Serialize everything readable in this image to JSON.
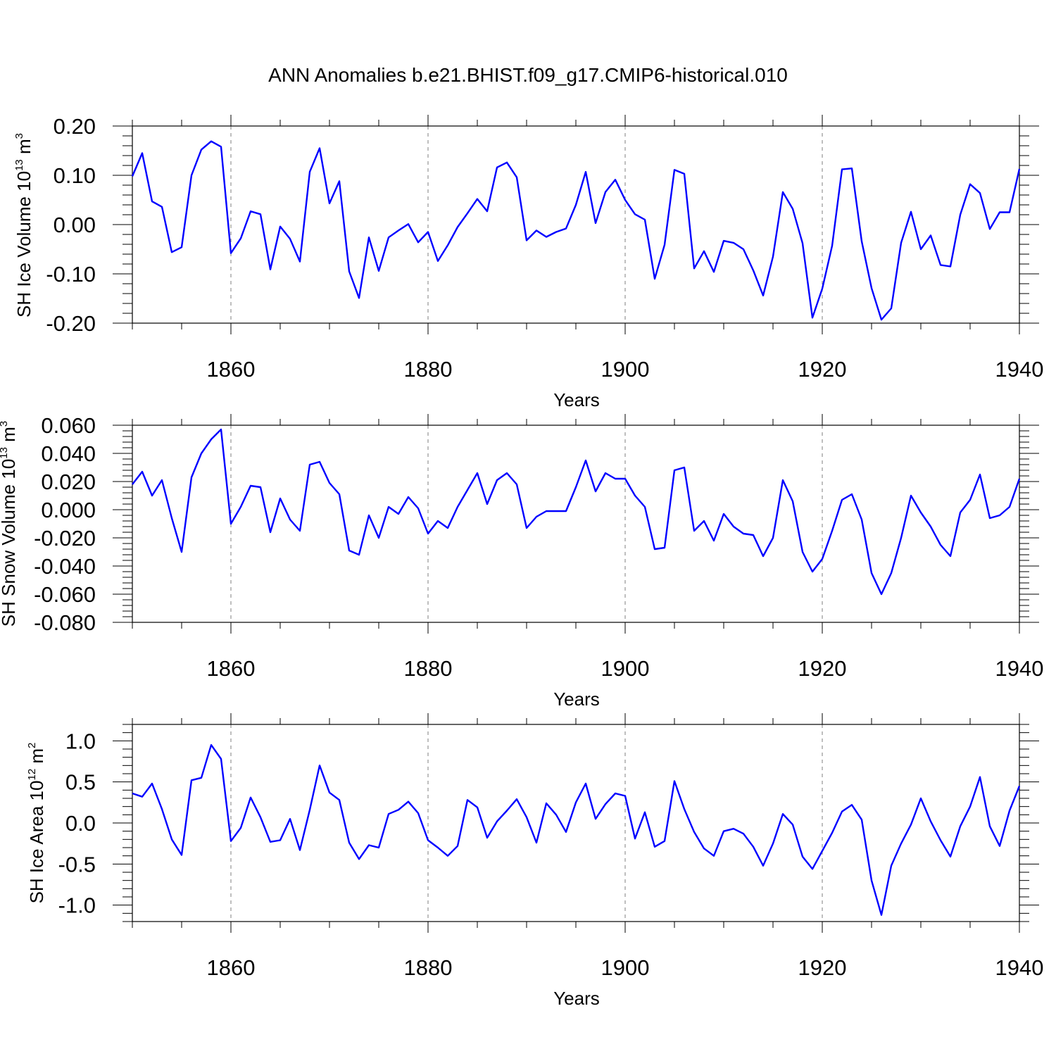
{
  "chart_data": [
    {
      "type": "line",
      "title": "ANN Anomalies b.e21.BHIST.f09_g17.CMIP6-historical.010",
      "ylabel": "SH Ice Volume 10",
      "ylabel_exp": "13",
      "ylabel_unit": " m",
      "ylabel_unit_exp": "3",
      "xlabel": "Years",
      "xlim": [
        1850,
        1940
      ],
      "ylim": [
        -0.2,
        0.2
      ],
      "xticks": [
        1860,
        1880,
        1900,
        1920,
        1940
      ],
      "xtick_labels": [
        "1860",
        "1880",
        "1900",
        "1920",
        "1940"
      ],
      "yticks": [
        0.2,
        0.1,
        0.0,
        -0.1,
        -0.2
      ],
      "ytick_labels": [
        "0.20",
        "0.10",
        "0.00",
        "-0.10",
        "-0.20"
      ],
      "grid_x": true,
      "color": "#0000ff",
      "x_start": 1850,
      "values": [
        0.098,
        0.145,
        0.047,
        0.036,
        -0.056,
        -0.046,
        0.1,
        0.152,
        0.169,
        0.158,
        -0.058,
        -0.028,
        0.027,
        0.021,
        -0.091,
        -0.004,
        -0.029,
        -0.075,
        0.107,
        0.155,
        0.043,
        0.088,
        -0.095,
        -0.149,
        -0.026,
        -0.094,
        -0.026,
        -0.012,
        0.001,
        -0.036,
        -0.015,
        -0.074,
        -0.042,
        -0.005,
        0.023,
        0.052,
        0.027,
        0.116,
        0.126,
        0.096,
        -0.032,
        -0.012,
        -0.025,
        -0.015,
        -0.008,
        0.04,
        0.107,
        0.003,
        0.066,
        0.091,
        0.05,
        0.021,
        0.01,
        -0.11,
        -0.041,
        0.111,
        0.103,
        -0.089,
        -0.054,
        -0.096,
        -0.033,
        -0.037,
        -0.05,
        -0.093,
        -0.144,
        -0.065,
        0.066,
        0.032,
        -0.038,
        -0.189,
        -0.13,
        -0.043,
        0.112,
        0.114,
        -0.034,
        -0.129,
        -0.193,
        -0.17,
        -0.037,
        0.026,
        -0.05,
        -0.022,
        -0.082,
        -0.085,
        0.02,
        0.082,
        0.064,
        -0.009,
        0.025,
        0.025,
        0.113
      ]
    },
    {
      "type": "line",
      "ylabel": "SH Snow Volume 10",
      "ylabel_exp": "13",
      "ylabel_unit": " m",
      "ylabel_unit_exp": "3",
      "xlabel": "Years",
      "xlim": [
        1850,
        1940
      ],
      "ylim": [
        -0.08,
        0.06
      ],
      "xticks": [
        1860,
        1880,
        1900,
        1920,
        1940
      ],
      "xtick_labels": [
        "1860",
        "1880",
        "1900",
        "1920",
        "1940"
      ],
      "yticks": [
        0.06,
        0.04,
        0.02,
        0.0,
        -0.02,
        -0.04,
        -0.06,
        -0.08
      ],
      "ytick_labels": [
        "0.060",
        "0.040",
        "0.020",
        "0.000",
        "-0.020",
        "-0.040",
        "-0.060",
        "-0.080"
      ],
      "grid_x": true,
      "color": "#0000ff",
      "x_start": 1850,
      "values": [
        0.018,
        0.027,
        0.01,
        0.021,
        -0.006,
        -0.03,
        0.023,
        0.04,
        0.05,
        0.057,
        -0.01,
        0.002,
        0.017,
        0.016,
        -0.016,
        0.008,
        -0.007,
        -0.015,
        0.032,
        0.034,
        0.019,
        0.011,
        -0.029,
        -0.032,
        -0.004,
        -0.02,
        0.002,
        -0.003,
        0.009,
        0.001,
        -0.017,
        -0.008,
        -0.013,
        0.002,
        0.014,
        0.026,
        0.004,
        0.021,
        0.026,
        0.018,
        -0.013,
        -0.005,
        -0.001,
        -0.001,
        -0.001,
        0.016,
        0.035,
        0.013,
        0.026,
        0.022,
        0.022,
        0.01,
        0.002,
        -0.028,
        -0.027,
        0.028,
        0.03,
        -0.015,
        -0.008,
        -0.022,
        -0.003,
        -0.012,
        -0.017,
        -0.018,
        -0.033,
        -0.02,
        0.021,
        0.006,
        -0.03,
        -0.044,
        -0.035,
        -0.015,
        0.007,
        0.011,
        -0.007,
        -0.045,
        -0.06,
        -0.045,
        -0.02,
        0.01,
        -0.002,
        -0.012,
        -0.025,
        -0.033,
        -0.002,
        0.007,
        0.025,
        -0.006,
        -0.004,
        0.002,
        0.022
      ]
    },
    {
      "type": "line",
      "ylabel": "SH Ice Area 10",
      "ylabel_exp": "12",
      "ylabel_unit": " m",
      "ylabel_unit_exp": "2",
      "xlabel": "Years",
      "xlim": [
        1850,
        1940
      ],
      "ylim": [
        -1.2,
        1.2
      ],
      "xticks": [
        1860,
        1880,
        1900,
        1920,
        1940
      ],
      "xtick_labels": [
        "1860",
        "1880",
        "1900",
        "1920",
        "1940"
      ],
      "yticks": [
        1.0,
        0.5,
        0.0,
        -0.5,
        -1.0
      ],
      "ytick_labels": [
        "1.0",
        "0.5",
        "0.0",
        "-0.5",
        "-1.0"
      ],
      "grid_x": true,
      "color": "#0000ff",
      "x_start": 1850,
      "values": [
        0.36,
        0.32,
        0.48,
        0.17,
        -0.2,
        -0.39,
        0.52,
        0.55,
        0.95,
        0.78,
        -0.22,
        -0.06,
        0.31,
        0.07,
        -0.23,
        -0.21,
        0.05,
        -0.33,
        0.16,
        0.7,
        0.37,
        0.28,
        -0.24,
        -0.44,
        -0.27,
        -0.3,
        0.11,
        0.16,
        0.26,
        0.12,
        -0.21,
        -0.3,
        -0.4,
        -0.28,
        0.28,
        0.19,
        -0.18,
        0.02,
        0.15,
        0.29,
        0.07,
        -0.24,
        0.24,
        0.1,
        -0.11,
        0.25,
        0.48,
        0.05,
        0.23,
        0.36,
        0.33,
        -0.19,
        0.13,
        -0.29,
        -0.22,
        0.51,
        0.17,
        -0.11,
        -0.31,
        -0.4,
        -0.1,
        -0.07,
        -0.13,
        -0.29,
        -0.52,
        -0.25,
        0.11,
        -0.02,
        -0.41,
        -0.56,
        -0.34,
        -0.12,
        0.14,
        0.22,
        0.04,
        -0.7,
        -1.12,
        -0.52,
        -0.25,
        -0.02,
        0.3,
        0.02,
        -0.21,
        -0.41,
        -0.04,
        0.2,
        0.56,
        -0.04,
        -0.28,
        0.15,
        0.45
      ]
    }
  ]
}
